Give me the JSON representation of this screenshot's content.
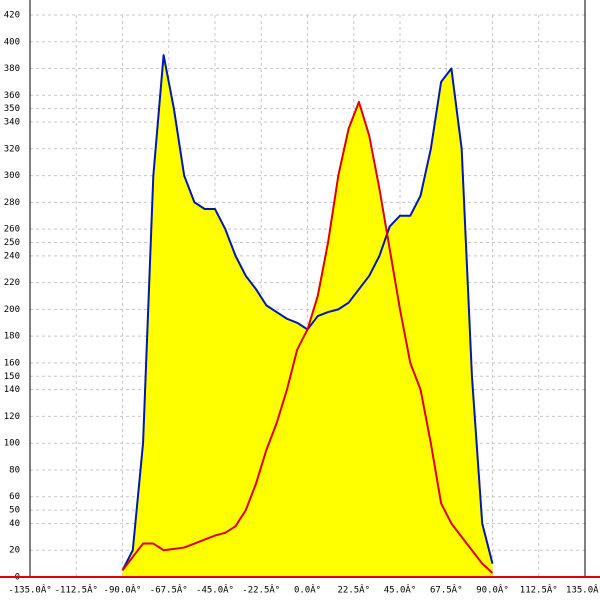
{
  "chart_data": {
    "type": "area",
    "x": [
      -90,
      -85,
      -80,
      -75,
      -70,
      -65,
      -60,
      -55,
      -50,
      -45,
      -40,
      -35,
      -30,
      -25,
      -20,
      -15,
      -10,
      -5,
      0,
      5,
      10,
      15,
      20,
      25,
      30,
      35,
      40,
      45,
      50,
      55,
      60,
      65,
      70,
      75,
      80,
      85,
      90
    ],
    "series": [
      {
        "color": "#0018b0",
        "fill": "#ffff00",
        "values": [
          5,
          20,
          100,
          300,
          390,
          350,
          300,
          280,
          275,
          275,
          260,
          240,
          225,
          215,
          203,
          198,
          193,
          190,
          185,
          195,
          198,
          200,
          205,
          215,
          225,
          240,
          262,
          270,
          270,
          285,
          320,
          370,
          380,
          320,
          150,
          40,
          10
        ]
      },
      {
        "color": "#e00000",
        "fill": "#ffff00",
        "values": [
          5,
          15,
          25,
          25,
          20,
          21,
          22,
          25,
          28,
          31,
          33,
          38,
          50,
          70,
          95,
          115,
          140,
          170,
          185,
          210,
          250,
          300,
          335,
          355,
          330,
          290,
          245,
          200,
          160,
          140,
          100,
          55,
          40,
          30,
          20,
          10,
          3
        ]
      }
    ],
    "xlim": [
      -135,
      135
    ],
    "xticks": [
      {
        "value": -135,
        "label": "-135.0Â°"
      },
      {
        "value": -112.5,
        "label": "-112.5Â°"
      },
      {
        "value": -90,
        "label": "-90.0Â°"
      },
      {
        "value": -67.5,
        "label": "-67.5Â°"
      },
      {
        "value": -45,
        "label": "-45.0Â°"
      },
      {
        "value": -22.5,
        "label": "-22.5Â°"
      },
      {
        "value": 0,
        "label": "0.0Â°"
      },
      {
        "value": 22.5,
        "label": "22.5Â°"
      },
      {
        "value": 45,
        "label": "45.0Â°"
      },
      {
        "value": 67.5,
        "label": "67.5Â°"
      },
      {
        "value": 90,
        "label": "90.0Â°"
      },
      {
        "value": 112.5,
        "label": "112.5Â°"
      },
      {
        "value": 135,
        "label": "135.0Â°"
      }
    ],
    "ylim": [
      0,
      420
    ],
    "yticks": [
      0,
      20,
      40,
      50,
      60,
      80,
      100,
      120,
      140,
      150,
      160,
      180,
      200,
      220,
      240,
      250,
      260,
      280,
      300,
      320,
      340,
      350,
      360,
      380,
      400,
      420
    ],
    "grid": true
  }
}
